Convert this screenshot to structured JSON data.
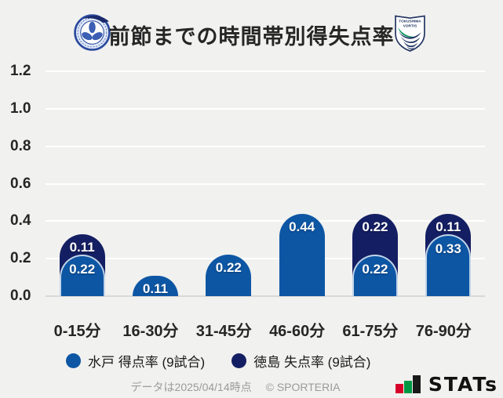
{
  "header": {
    "title": "前節までの時間帯別得失点率",
    "home_crest": {
      "name": "MITO HOLLY HOCK"
    },
    "away_crest": {
      "line1": "TOKUSHIMA",
      "line2": "VORTIS"
    }
  },
  "chart_data": {
    "type": "bar",
    "title": "前節までの時間帯別得失点率",
    "categories": [
      "0-15分",
      "16-30分",
      "31-45分",
      "46-60分",
      "61-75分",
      "76-90分"
    ],
    "series": [
      {
        "name": "水戸 得点率 (9試合)",
        "color": "#0d56a4",
        "values": [
          0.22,
          0.11,
          0.22,
          0.44,
          0.22,
          0.33
        ]
      },
      {
        "name": "徳島 失点率 (9試合)",
        "color": "#141f63",
        "values": [
          0.11,
          0,
          0,
          0,
          0.22,
          0.11
        ]
      }
    ],
    "stacked": true,
    "grid": true,
    "legend_position": "bottom",
    "y_ticks": [
      1.2,
      1.0,
      0.8,
      0.6,
      0.4,
      0.2,
      0.0
    ],
    "ylim": [
      0,
      1.2
    ]
  },
  "footer": {
    "note": "データは2025/04/14時点",
    "copyright": "© SPORTERIA",
    "brand": "STATs"
  },
  "colors": {
    "background": "#f1f1ef",
    "mito_blue": "#0d56a4",
    "tokushima_navy": "#141f63",
    "gridline": "#ffffff",
    "axis_line": "#d8d8d6",
    "text_dark": "#262626",
    "footer_gray": "#9b9b9b",
    "stats_red": "#d70029",
    "stats_green": "#009844"
  }
}
